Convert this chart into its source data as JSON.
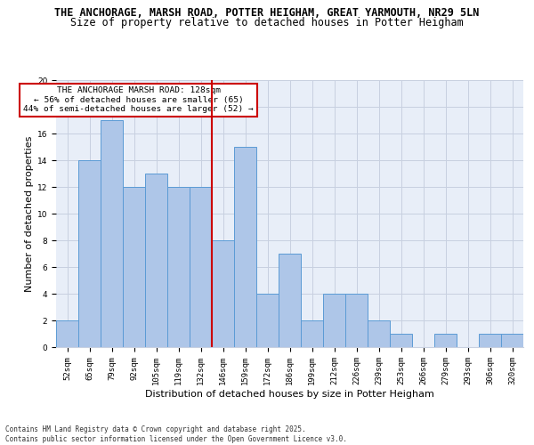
{
  "title_line1": "THE ANCHORAGE, MARSH ROAD, POTTER HEIGHAM, GREAT YARMOUTH, NR29 5LN",
  "title_line2": "Size of property relative to detached houses in Potter Heigham",
  "xlabel": "Distribution of detached houses by size in Potter Heigham",
  "ylabel": "Number of detached properties",
  "categories": [
    "52sqm",
    "65sqm",
    "79sqm",
    "92sqm",
    "105sqm",
    "119sqm",
    "132sqm",
    "146sqm",
    "159sqm",
    "172sqm",
    "186sqm",
    "199sqm",
    "212sqm",
    "226sqm",
    "239sqm",
    "253sqm",
    "266sqm",
    "279sqm",
    "293sqm",
    "306sqm",
    "320sqm"
  ],
  "values": [
    2,
    14,
    17,
    12,
    13,
    12,
    12,
    8,
    15,
    4,
    7,
    2,
    4,
    4,
    2,
    1,
    0,
    1,
    0,
    1,
    1
  ],
  "bar_color": "#aec6e8",
  "bar_edge_color": "#5b9bd5",
  "vline_color": "#cc0000",
  "annotation_text": "THE ANCHORAGE MARSH ROAD: 128sqm\n← 56% of detached houses are smaller (65)\n44% of semi-detached houses are larger (52) →",
  "annotation_box_color": "#ffffff",
  "annotation_box_edge": "#cc0000",
  "ylim": [
    0,
    20
  ],
  "yticks": [
    0,
    2,
    4,
    6,
    8,
    10,
    12,
    14,
    16,
    18,
    20
  ],
  "grid_color": "#c8d0e0",
  "background_color": "#e8eef8",
  "footer_text": "Contains HM Land Registry data © Crown copyright and database right 2025.\nContains public sector information licensed under the Open Government Licence v3.0.",
  "title_fontsize": 8.5,
  "subtitle_fontsize": 8.5,
  "axis_label_fontsize": 8,
  "tick_fontsize": 6.5,
  "annotation_fontsize": 6.8,
  "footer_fontsize": 5.5
}
